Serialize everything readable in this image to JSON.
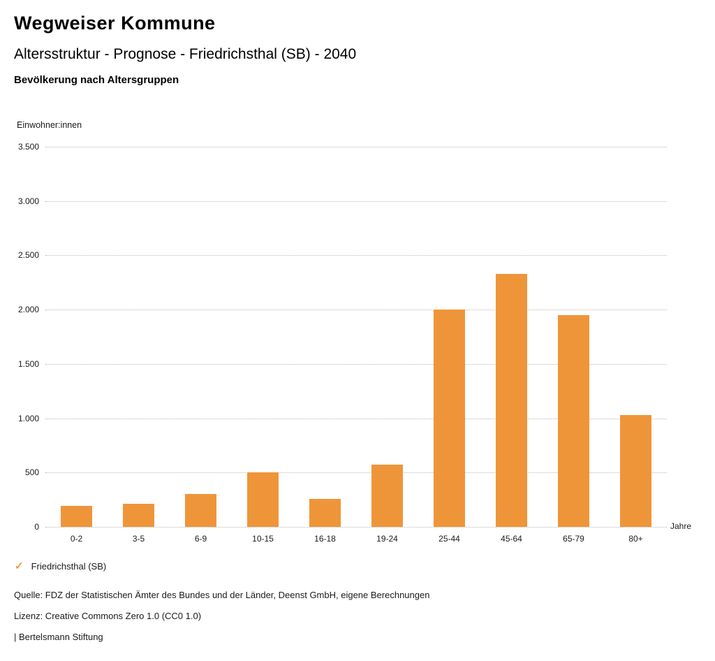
{
  "header": {
    "title": "Wegweiser Kommune",
    "subtitle": "Altersstruktur - Prognose - Friedrichsthal (SB) - 2040",
    "section": "Bevölkerung nach Altersgruppen"
  },
  "chart_data": {
    "type": "bar",
    "title": "Bevölkerung nach Altersgruppen",
    "y_axis_title": "Einwohner:innen",
    "x_unit_label": "Jahre",
    "categories": [
      "0-2",
      "3-5",
      "6-9",
      "10-15",
      "16-18",
      "19-24",
      "25-44",
      "45-64",
      "65-79",
      "80+"
    ],
    "values": [
      190,
      210,
      300,
      500,
      260,
      570,
      2000,
      2330,
      1950,
      1030
    ],
    "series_name": "Friedrichsthal (SB)",
    "ylim": [
      0,
      3500
    ],
    "ytick_step": 500,
    "ytick_labels": [
      "0",
      "500",
      "1.000",
      "1.500",
      "2.000",
      "2.500",
      "3.000",
      "3.500"
    ],
    "grid": true,
    "grid_style": "dotted",
    "legend_position": "bottom-left",
    "bar_color": "#EF9539"
  },
  "legend": {
    "marker": "✓",
    "marker_color": "#EF9539",
    "label": "Friedrichsthal (SB)"
  },
  "footer": {
    "source": "Quelle: FDZ der Statistischen Ämter des Bundes und der Länder, Deenst GmbH, eigene Berechnungen",
    "license": "Lizenz: Creative Commons Zero 1.0 (CC0 1.0)",
    "attribution": "| Bertelsmann Stiftung"
  }
}
